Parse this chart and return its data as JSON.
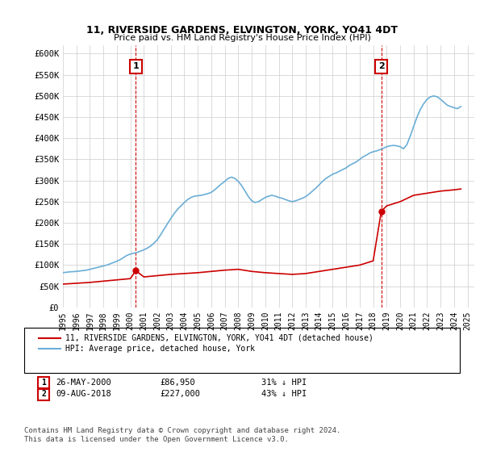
{
  "title1": "11, RIVERSIDE GARDENS, ELVINGTON, YORK, YO41 4DT",
  "title2": "Price paid vs. HM Land Registry's House Price Index (HPI)",
  "ylabel_ticks": [
    "£0",
    "£50K",
    "£100K",
    "£150K",
    "£200K",
    "£250K",
    "£300K",
    "£350K",
    "£400K",
    "£450K",
    "£500K",
    "£550K",
    "£600K"
  ],
  "ytick_vals": [
    0,
    50000,
    100000,
    150000,
    200000,
    250000,
    300000,
    350000,
    400000,
    450000,
    500000,
    550000,
    600000
  ],
  "ylim": [
    0,
    620000
  ],
  "xlim_start": 1995.0,
  "xlim_end": 2025.5,
  "hpi_color": "#6baed6",
  "property_color": "#cc0000",
  "transaction1": {
    "date_label": "26-MAY-2000",
    "year": 2000.4,
    "price": 86950,
    "label": "1",
    "hpi_pct": "31% ↓ HPI"
  },
  "transaction2": {
    "date_label": "09-AUG-2018",
    "year": 2018.6,
    "price": 227000,
    "label": "2",
    "hpi_pct": "43% ↓ HPI"
  },
  "legend_property": "11, RIVERSIDE GARDENS, ELVINGTON, YORK, YO41 4DT (detached house)",
  "legend_hpi": "HPI: Average price, detached house, York",
  "footnote": "Contains HM Land Registry data © Crown copyright and database right 2024.\nThis data is licensed under the Open Government Licence v3.0.",
  "hpi_data_x": [
    1995.0,
    1995.25,
    1995.5,
    1995.75,
    1996.0,
    1996.25,
    1996.5,
    1996.75,
    1997.0,
    1997.25,
    1997.5,
    1997.75,
    1998.0,
    1998.25,
    1998.5,
    1998.75,
    1999.0,
    1999.25,
    1999.5,
    1999.75,
    2000.0,
    2000.25,
    2000.5,
    2000.75,
    2001.0,
    2001.25,
    2001.5,
    2001.75,
    2002.0,
    2002.25,
    2002.5,
    2002.75,
    2003.0,
    2003.25,
    2003.5,
    2003.75,
    2004.0,
    2004.25,
    2004.5,
    2004.75,
    2005.0,
    2005.25,
    2005.5,
    2005.75,
    2006.0,
    2006.25,
    2006.5,
    2006.75,
    2007.0,
    2007.25,
    2007.5,
    2007.75,
    2008.0,
    2008.25,
    2008.5,
    2008.75,
    2009.0,
    2009.25,
    2009.5,
    2009.75,
    2010.0,
    2010.25,
    2010.5,
    2010.75,
    2011.0,
    2011.25,
    2011.5,
    2011.75,
    2012.0,
    2012.25,
    2012.5,
    2012.75,
    2013.0,
    2013.25,
    2013.5,
    2013.75,
    2014.0,
    2014.25,
    2014.5,
    2014.75,
    2015.0,
    2015.25,
    2015.5,
    2015.75,
    2016.0,
    2016.25,
    2016.5,
    2016.75,
    2017.0,
    2017.25,
    2017.5,
    2017.75,
    2018.0,
    2018.25,
    2018.5,
    2018.75,
    2019.0,
    2019.25,
    2019.5,
    2019.75,
    2020.0,
    2020.25,
    2020.5,
    2020.75,
    2021.0,
    2021.25,
    2021.5,
    2021.75,
    2022.0,
    2022.25,
    2022.5,
    2022.75,
    2023.0,
    2023.25,
    2023.5,
    2023.75,
    2024.0,
    2024.25,
    2024.5
  ],
  "hpi_data_y": [
    82000,
    83000,
    84000,
    84500,
    85000,
    86000,
    87000,
    88000,
    90000,
    92000,
    94000,
    96000,
    98000,
    100000,
    103000,
    106000,
    109000,
    113000,
    118000,
    123000,
    126000,
    128000,
    130000,
    133000,
    136000,
    140000,
    145000,
    152000,
    160000,
    172000,
    185000,
    198000,
    210000,
    222000,
    232000,
    240000,
    248000,
    255000,
    260000,
    263000,
    264000,
    265000,
    267000,
    269000,
    272000,
    278000,
    285000,
    292000,
    298000,
    305000,
    308000,
    305000,
    298000,
    288000,
    275000,
    262000,
    252000,
    248000,
    250000,
    255000,
    260000,
    263000,
    265000,
    263000,
    260000,
    258000,
    255000,
    252000,
    250000,
    252000,
    255000,
    258000,
    262000,
    268000,
    275000,
    282000,
    290000,
    298000,
    305000,
    310000,
    315000,
    318000,
    322000,
    326000,
    330000,
    336000,
    340000,
    344000,
    350000,
    356000,
    360000,
    365000,
    368000,
    370000,
    373000,
    376000,
    380000,
    382000,
    383000,
    382000,
    380000,
    375000,
    385000,
    405000,
    428000,
    450000,
    468000,
    482000,
    492000,
    498000,
    500000,
    498000,
    492000,
    485000,
    478000,
    475000,
    472000,
    470000,
    475000
  ],
  "prop_data_x": [
    1995.0,
    1996.0,
    1997.0,
    1998.0,
    1999.0,
    2000.0,
    2000.4,
    2001.0,
    2002.0,
    2003.0,
    2004.0,
    2005.0,
    2006.0,
    2007.0,
    2008.0,
    2009.0,
    2010.0,
    2011.0,
    2012.0,
    2013.0,
    2014.0,
    2015.0,
    2016.0,
    2017.0,
    2018.0,
    2018.6,
    2019.0,
    2020.0,
    2021.0,
    2022.0,
    2023.0,
    2024.0,
    2024.5
  ],
  "prop_data_y": [
    55000,
    57000,
    59000,
    62000,
    65000,
    68000,
    86950,
    72000,
    75000,
    78000,
    80000,
    82000,
    85000,
    88000,
    90000,
    85000,
    82000,
    80000,
    78000,
    80000,
    85000,
    90000,
    95000,
    100000,
    110000,
    227000,
    240000,
    250000,
    265000,
    270000,
    275000,
    278000,
    280000
  ],
  "marker_box_color": "#cc0000",
  "vline_color": "#cc0000",
  "bg_color": "#ffffff",
  "grid_color": "#cccccc"
}
